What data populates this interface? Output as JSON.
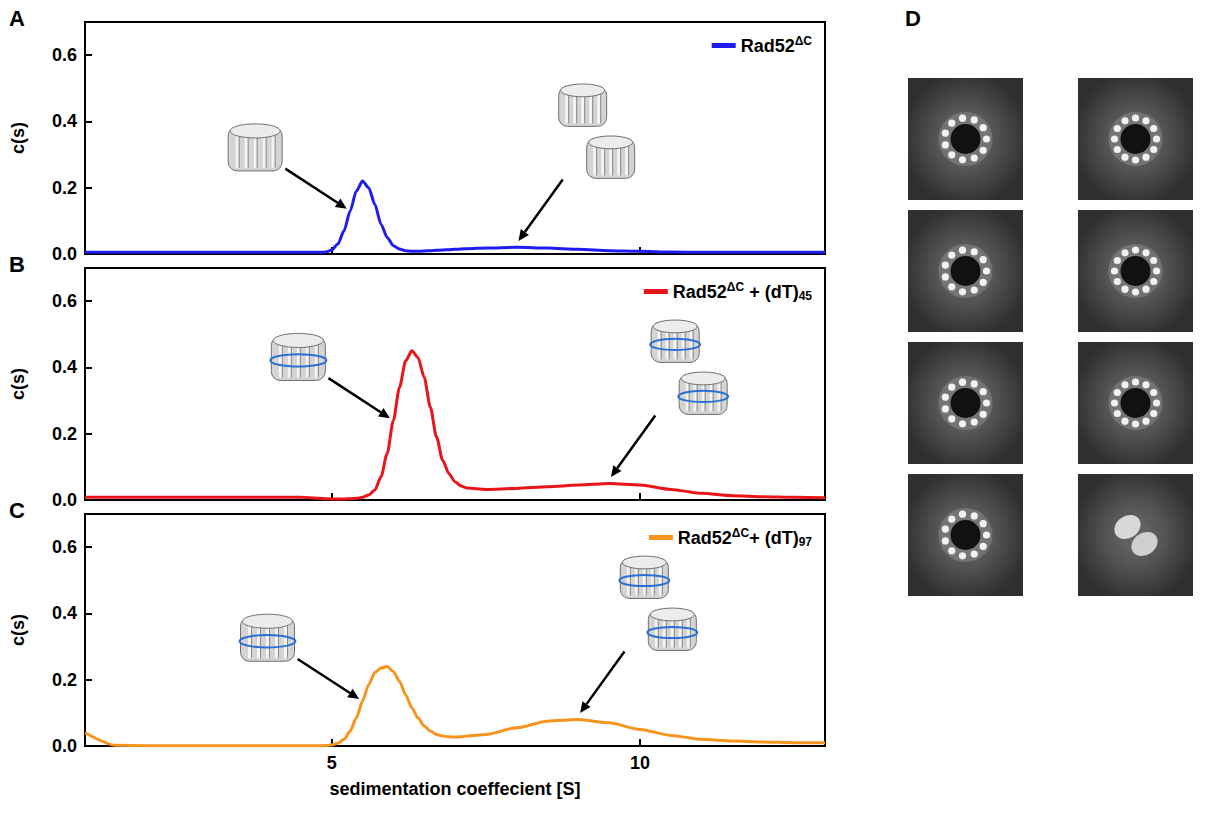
{
  "chart_data": [
    {
      "panel_label": "A",
      "type": "line",
      "x": [
        1,
        1.5,
        2,
        2.5,
        3,
        3.5,
        4,
        4.5,
        4.8,
        4.9,
        5.0,
        5.1,
        5.2,
        5.3,
        5.4,
        5.5,
        5.6,
        5.7,
        5.8,
        5.9,
        6.0,
        6.1,
        6.2,
        6.3,
        6.4,
        6.5,
        6.6,
        6.7,
        6.8,
        6.9,
        7.0,
        7.1,
        7.2,
        7.5,
        8,
        8.5,
        9,
        9.5,
        10,
        10.5,
        11,
        11.5,
        12,
        12.5,
        13
      ],
      "series": [
        {
          "name": "Rad52ΔC",
          "color": "#1d1df2",
          "values": [
            0.005,
            0.005,
            0.005,
            0.005,
            0.005,
            0.005,
            0.005,
            0.005,
            0.005,
            0.006,
            0.012,
            0.03,
            0.07,
            0.13,
            0.19,
            0.22,
            0.2,
            0.15,
            0.09,
            0.05,
            0.025,
            0.015,
            0.01,
            0.008,
            0.008,
            0.009,
            0.01,
            0.011,
            0.012,
            0.013,
            0.014,
            0.015,
            0.016,
            0.018,
            0.02,
            0.018,
            0.014,
            0.01,
            0.008,
            0.006,
            0.005,
            0.005,
            0.005,
            0.005,
            0.005
          ]
        }
      ],
      "xlim": [
        1,
        13
      ],
      "xticks": [
        5,
        10
      ],
      "ylim": [
        0,
        0.7
      ],
      "yticks": [
        {
          "value": 0,
          "label": "0.0"
        },
        0.2,
        0.4,
        0.6
      ],
      "ylabel": "c(s)",
      "legend": "top-right",
      "grid": false,
      "tick_labels": "y"
    },
    {
      "panel_label": "B",
      "type": "line",
      "x": [
        1,
        1.5,
        2,
        2.5,
        3,
        3.5,
        4,
        4.5,
        4.8,
        4.9,
        5.0,
        5.1,
        5.2,
        5.3,
        5.4,
        5.5,
        5.6,
        5.7,
        5.8,
        5.9,
        6.0,
        6.1,
        6.2,
        6.3,
        6.4,
        6.5,
        6.6,
        6.7,
        6.8,
        6.9,
        7.0,
        7.1,
        7.2,
        7.5,
        8,
        8.5,
        9,
        9.5,
        10,
        10.5,
        11,
        11.5,
        12,
        12.5,
        13
      ],
      "series": [
        {
          "name": "Rad52ΔC + (dT)45",
          "color": "#e8151b",
          "values": [
            0.008,
            0.008,
            0.008,
            0.008,
            0.008,
            0.008,
            0.008,
            0.008,
            0.005,
            0.004,
            0.003,
            0.003,
            0.003,
            0.004,
            0.005,
            0.008,
            0.015,
            0.03,
            0.07,
            0.14,
            0.24,
            0.34,
            0.42,
            0.45,
            0.43,
            0.37,
            0.28,
            0.19,
            0.12,
            0.08,
            0.055,
            0.042,
            0.036,
            0.032,
            0.035,
            0.04,
            0.045,
            0.05,
            0.045,
            0.032,
            0.02,
            0.013,
            0.01,
            0.008,
            0.007
          ]
        }
      ],
      "xlim": [
        1,
        13
      ],
      "xticks": [
        5,
        10
      ],
      "ylim": [
        0,
        0.7
      ],
      "yticks": [
        {
          "value": 0,
          "label": "0.0"
        },
        0.2,
        0.4,
        0.6
      ],
      "ylabel": "c(s)",
      "legend": "top-right",
      "grid": false,
      "tick_labels": "y"
    },
    {
      "panel_label": "C",
      "type": "line",
      "x": [
        1,
        1.5,
        2,
        2.5,
        3,
        3.5,
        4,
        4.5,
        4.8,
        4.9,
        5.0,
        5.1,
        5.2,
        5.3,
        5.4,
        5.5,
        5.6,
        5.7,
        5.8,
        5.9,
        6.0,
        6.1,
        6.2,
        6.3,
        6.4,
        6.5,
        6.6,
        6.7,
        6.8,
        6.9,
        7.0,
        7.1,
        7.2,
        7.5,
        8,
        8.5,
        9,
        9.5,
        10,
        10.5,
        11,
        11.5,
        12,
        12.5,
        13
      ],
      "series": [
        {
          "name": "Rad52ΔC+ (dT)97",
          "color": "#f7941d",
          "values": [
            0.04,
            0.002,
            0.001,
            0.001,
            0.001,
            0.001,
            0.001,
            0.001,
            0.001,
            0.001,
            0.003,
            0.008,
            0.02,
            0.045,
            0.085,
            0.135,
            0.185,
            0.222,
            0.235,
            0.24,
            0.225,
            0.195,
            0.155,
            0.115,
            0.085,
            0.06,
            0.045,
            0.035,
            0.03,
            0.028,
            0.027,
            0.028,
            0.03,
            0.035,
            0.055,
            0.075,
            0.08,
            0.07,
            0.05,
            0.032,
            0.02,
            0.015,
            0.012,
            0.01,
            0.01
          ]
        }
      ],
      "xlim": [
        1,
        13
      ],
      "xticks": [
        5,
        10
      ],
      "ylim": [
        0,
        0.7
      ],
      "yticks": [
        {
          "value": 0,
          "label": "0.0"
        },
        0.2,
        0.4,
        0.6
      ],
      "xlabel": "sedimentation coeffecient [S]",
      "ylabel": "c(s)",
      "legend": "top-right",
      "grid": false
    }
  ],
  "panel_d": {
    "label": "D",
    "class_averages": 8
  }
}
